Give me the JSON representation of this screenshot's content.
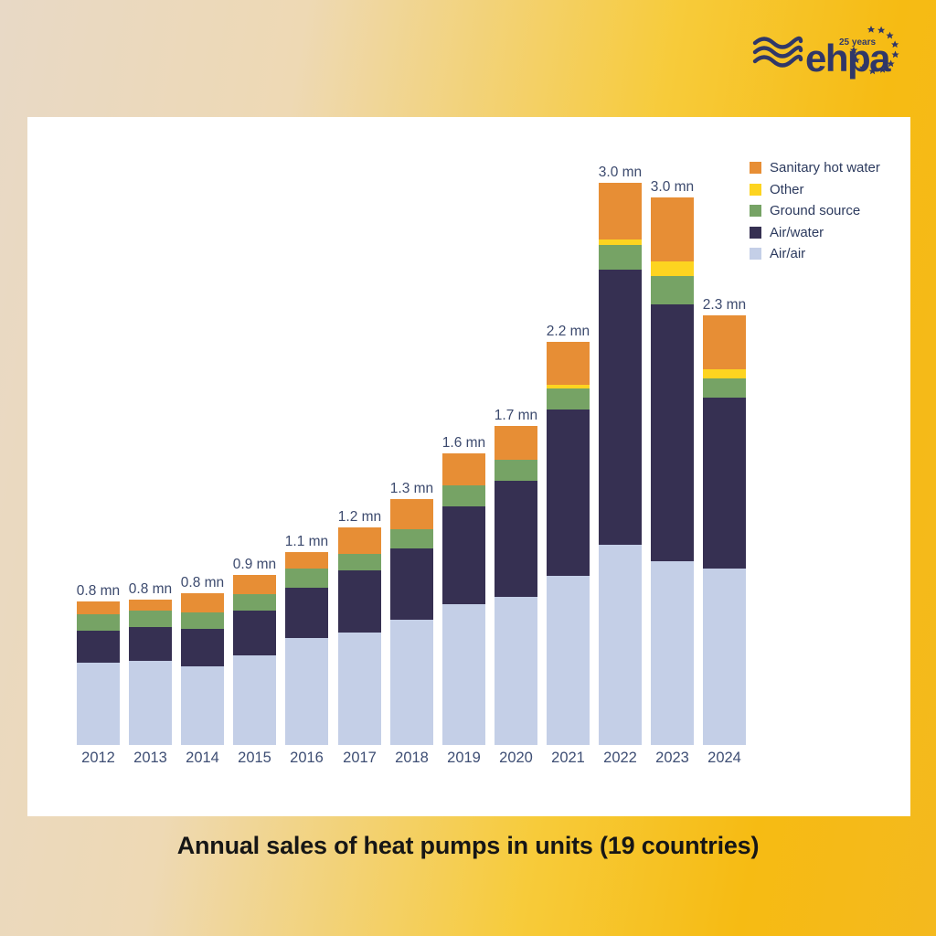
{
  "page": {
    "title": "Annual sales of heat pumps in units (19 countries)"
  },
  "logo": {
    "brand": "ehpa",
    "badge": "25 years"
  },
  "colors": {
    "background_left": "#e8d9c6",
    "background_right": "#f4b91e",
    "panel": "#ffffff",
    "logo_navy": "#303768",
    "value_label": "#3c4a6e",
    "year_label": "#3e4e74",
    "caption": "#161616"
  },
  "legend": {
    "position": "top-right",
    "items": [
      {
        "label": "Sanitary hot water",
        "color": "#e78e35"
      },
      {
        "label": "Other",
        "color": "#fdd420"
      },
      {
        "label": "Ground source",
        "color": "#76a365"
      },
      {
        "label": "Air/water",
        "color": "#363052"
      },
      {
        "label": "Air/air",
        "color": "#c4cfe7"
      }
    ]
  },
  "chart_data": {
    "type": "bar",
    "stacked": true,
    "title": "Annual sales of heat pumps in units (19 countries)",
    "unit": "million units",
    "grid": false,
    "legend_position": "top-right",
    "ylim": [
      0,
      3.2
    ],
    "categories": [
      "2012",
      "2013",
      "2014",
      "2015",
      "2016",
      "2017",
      "2018",
      "2019",
      "2020",
      "2021",
      "2022",
      "2023",
      "2024"
    ],
    "series": [
      {
        "name": "Air/air",
        "color": "#c4cfe7",
        "values": [
          0.44,
          0.45,
          0.42,
          0.48,
          0.57,
          0.6,
          0.67,
          0.75,
          0.79,
          0.9,
          1.07,
          0.98,
          0.94
        ]
      },
      {
        "name": "Air/water",
        "color": "#363052",
        "values": [
          0.17,
          0.18,
          0.2,
          0.24,
          0.27,
          0.33,
          0.38,
          0.52,
          0.62,
          0.89,
          1.47,
          1.37,
          0.91
        ]
      },
      {
        "name": "Ground source",
        "color": "#76a365",
        "values": [
          0.09,
          0.09,
          0.09,
          0.09,
          0.1,
          0.09,
          0.1,
          0.11,
          0.11,
          0.11,
          0.13,
          0.15,
          0.1
        ]
      },
      {
        "name": "Other",
        "color": "#fdd420",
        "values": [
          0,
          0,
          0,
          0,
          0,
          0,
          0,
          0,
          0,
          0.02,
          0.03,
          0.08,
          0.05
        ]
      },
      {
        "name": "Sanitary hot water",
        "color": "#e78e35",
        "values": [
          0.07,
          0.06,
          0.1,
          0.1,
          0.09,
          0.14,
          0.16,
          0.17,
          0.18,
          0.23,
          0.3,
          0.34,
          0.29
        ]
      }
    ],
    "total_labels": [
      "0.8 mn",
      "0.8 mn",
      "0.8 mn",
      "0.9 mn",
      "1.1 mn",
      "1.2 mn",
      "1.3 mn",
      "1.6 mn",
      "1.7 mn",
      "2.2 mn",
      "3.0 mn",
      "3.0 mn",
      "2.3 mn"
    ]
  }
}
